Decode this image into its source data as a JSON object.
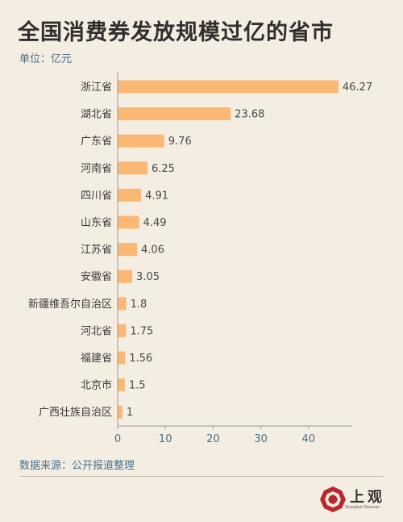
{
  "title": "全国消费券发放规模过亿的省市",
  "unit_label": "单位：亿元",
  "source_label": "数据来源：公开报道整理",
  "logo": {
    "name": "上观",
    "subtitle": "Shanghai Observer"
  },
  "colors": {
    "bar": "#fbb874",
    "background": "#f3ede2",
    "accent": "#4a6f8a",
    "logo_red": "#b8282e"
  },
  "chart_data": {
    "type": "bar",
    "orientation": "horizontal",
    "title": "全国消费券发放规模过亿的省市",
    "unit": "亿元",
    "categories": [
      "浙江省",
      "湖北省",
      "广东省",
      "河南省",
      "四川省",
      "山东省",
      "江苏省",
      "安徽省",
      "新疆维吾尔自治区",
      "河北省",
      "福建省",
      "北京市",
      "广西壮族自治区"
    ],
    "values": [
      46.27,
      23.68,
      9.76,
      6.25,
      4.91,
      4.49,
      4.06,
      3.05,
      1.8,
      1.75,
      1.56,
      1.5,
      1
    ],
    "value_labels": [
      "46.27",
      "23.68",
      "9.76",
      "6.25",
      "4.91",
      "4.49",
      "4.06",
      "3.05",
      "1.8",
      "1.75",
      "1.56",
      "1.5",
      "1"
    ],
    "xticks": [
      "0",
      "10",
      "20",
      "30",
      "40"
    ],
    "xlim": [
      0,
      49
    ],
    "grid": false,
    "legend": "none"
  }
}
